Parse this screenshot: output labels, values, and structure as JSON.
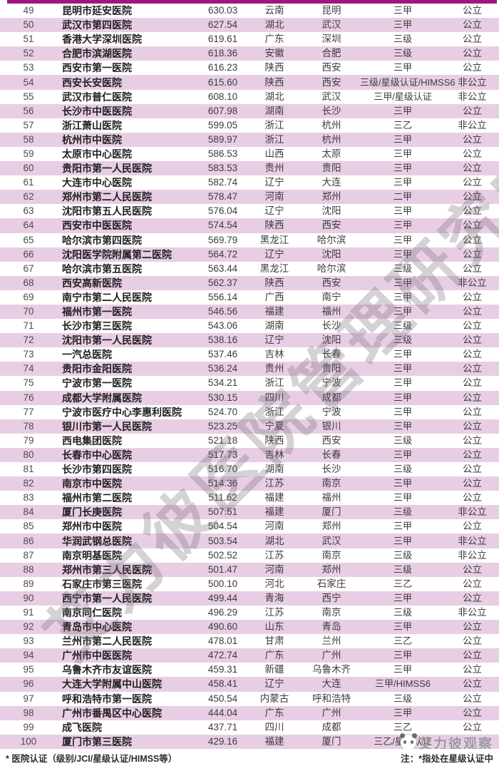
{
  "accent": {
    "top_bar_color": "#a2157e",
    "row_pink": "#e8cee4"
  },
  "table": {
    "rows": [
      {
        "rank": "49",
        "name": "昆明市延安医院",
        "score": "630.03",
        "province": "云南",
        "city": "昆明",
        "grade": "三甲",
        "ownership": "公立"
      },
      {
        "rank": "50",
        "name": "武汉市第四医院",
        "score": "627.54",
        "province": "湖北",
        "city": "武汉",
        "grade": "三甲",
        "ownership": "公立"
      },
      {
        "rank": "51",
        "name": "香港大学深圳医院",
        "score": "619.61",
        "province": "广东",
        "city": "深圳",
        "grade": "三级",
        "ownership": "公立"
      },
      {
        "rank": "52",
        "name": "合肥市滨湖医院",
        "score": "618.36",
        "province": "安徽",
        "city": "合肥",
        "grade": "三级",
        "ownership": "公立"
      },
      {
        "rank": "53",
        "name": "西安市第一医院",
        "score": "616.23",
        "province": "陕西",
        "city": "西安",
        "grade": "三甲",
        "ownership": "公立"
      },
      {
        "rank": "54",
        "name": "西安长安医院",
        "score": "615.60",
        "province": "陕西",
        "city": "西安",
        "grade": "三级/星级认证/HIMSS6",
        "ownership": "非公立"
      },
      {
        "rank": "55",
        "name": "武汉市普仁医院",
        "score": "608.10",
        "province": "湖北",
        "city": "武汉",
        "grade": "三甲/星级认证",
        "ownership": "非公立"
      },
      {
        "rank": "56",
        "name": "长沙市中医医院",
        "score": "607.98",
        "province": "湖南",
        "city": "长沙",
        "grade": "三甲",
        "ownership": "公立"
      },
      {
        "rank": "57",
        "name": "浙江萧山医院",
        "score": "599.05",
        "province": "浙江",
        "city": "杭州",
        "grade": "三乙",
        "ownership": "非公立"
      },
      {
        "rank": "58",
        "name": "杭州市中医院",
        "score": "589.97",
        "province": "浙江",
        "city": "杭州",
        "grade": "三甲",
        "ownership": "公立"
      },
      {
        "rank": "59",
        "name": "太原市中心医院",
        "score": "586.53",
        "province": "山西",
        "city": "太原",
        "grade": "三甲",
        "ownership": "公立"
      },
      {
        "rank": "60",
        "name": "贵阳市第一人民医院",
        "score": "583.53",
        "province": "贵州",
        "city": "贵阳",
        "grade": "三甲",
        "ownership": "公立"
      },
      {
        "rank": "61",
        "name": "大连市中心医院",
        "score": "582.74",
        "province": "辽宁",
        "city": "大连",
        "grade": "三甲",
        "ownership": "公立"
      },
      {
        "rank": "62",
        "name": "郑州市第二人民医院",
        "score": "578.47",
        "province": "河南",
        "city": "郑州",
        "grade": "二甲",
        "ownership": "公立"
      },
      {
        "rank": "63",
        "name": "沈阳市第五人民医院",
        "score": "576.04",
        "province": "辽宁",
        "city": "沈阳",
        "grade": "三甲",
        "ownership": "公立"
      },
      {
        "rank": "64",
        "name": "西安市中医医院",
        "score": "574.54",
        "province": "陕西",
        "city": "西安",
        "grade": "三甲",
        "ownership": "公立"
      },
      {
        "rank": "65",
        "name": "哈尔滨市第四医院",
        "score": "569.79",
        "province": "黑龙江",
        "city": "哈尔滨",
        "grade": "三甲",
        "ownership": "公立"
      },
      {
        "rank": "66",
        "name": "沈阳医学院附属第二医院",
        "score": "564.72",
        "province": "辽宁",
        "city": "沈阳",
        "grade": "三甲",
        "ownership": "公立"
      },
      {
        "rank": "67",
        "name": "哈尔滨市第五医院",
        "score": "563.44",
        "province": "黑龙江",
        "city": "哈尔滨",
        "grade": "三级",
        "ownership": "公立"
      },
      {
        "rank": "68",
        "name": "西安高新医院",
        "score": "562.37",
        "province": "陕西",
        "city": "西安",
        "grade": "三甲",
        "ownership": "非公立"
      },
      {
        "rank": "69",
        "name": "南宁市第二人民医院",
        "score": "556.14",
        "province": "广西",
        "city": "南宁",
        "grade": "三甲",
        "ownership": "公立"
      },
      {
        "rank": "70",
        "name": "福州市第一医院",
        "score": "546.56",
        "province": "福建",
        "city": "福州",
        "grade": "三甲",
        "ownership": "公立"
      },
      {
        "rank": "71",
        "name": "长沙市第三医院",
        "score": "543.06",
        "province": "湖南",
        "city": "长沙",
        "grade": "三级",
        "ownership": "公立"
      },
      {
        "rank": "72",
        "name": "沈阳市第一人民医院",
        "score": "538.16",
        "province": "辽宁",
        "city": "沈阳",
        "grade": "三级",
        "ownership": "公立"
      },
      {
        "rank": "73",
        "name": "一汽总医院",
        "score": "537.46",
        "province": "吉林",
        "city": "长春",
        "grade": "三甲",
        "ownership": "公立"
      },
      {
        "rank": "74",
        "name": "贵阳市金阳医院",
        "score": "536.24",
        "province": "贵州",
        "city": "贵阳",
        "grade": "三甲",
        "ownership": "公立"
      },
      {
        "rank": "75",
        "name": "宁波市第一医院",
        "score": "534.21",
        "province": "浙江",
        "city": "宁波",
        "grade": "三甲",
        "ownership": "公立"
      },
      {
        "rank": "76",
        "name": "成都大学附属医院",
        "score": "530.15",
        "province": "四川",
        "city": "成都",
        "grade": "三甲",
        "ownership": "公立"
      },
      {
        "rank": "77",
        "name": "宁波市医疗中心李惠利医院",
        "score": "524.70",
        "province": "浙江",
        "city": "宁波",
        "grade": "三甲",
        "ownership": "公立"
      },
      {
        "rank": "78",
        "name": "银川市第一人民医院",
        "score": "523.25",
        "province": "宁夏",
        "city": "银川",
        "grade": "三甲",
        "ownership": "公立"
      },
      {
        "rank": "79",
        "name": "西电集团医院",
        "score": "521.18",
        "province": "陕西",
        "city": "西安",
        "grade": "三级",
        "ownership": "公立"
      },
      {
        "rank": "80",
        "name": "长春市中心医院",
        "score": "517.73",
        "province": "吉林",
        "city": "长春",
        "grade": "三甲",
        "ownership": "公立"
      },
      {
        "rank": "81",
        "name": "长沙市第四医院",
        "score": "516.70",
        "province": "湖南",
        "city": "长沙",
        "grade": "三级",
        "ownership": "公立"
      },
      {
        "rank": "82",
        "name": "南京市中医院",
        "score": "514.36",
        "province": "江苏",
        "city": "南京",
        "grade": "三甲",
        "ownership": "公立"
      },
      {
        "rank": "83",
        "name": "福州市第二医院",
        "score": "511.62",
        "province": "福建",
        "city": "福州",
        "grade": "三甲",
        "ownership": "公立"
      },
      {
        "rank": "84",
        "name": "厦门长庚医院",
        "score": "507.51",
        "province": "福建",
        "city": "厦门",
        "grade": "三级",
        "ownership": "非公立"
      },
      {
        "rank": "85",
        "name": "郑州市中医院",
        "score": "504.54",
        "province": "河南",
        "city": "郑州",
        "grade": "三甲",
        "ownership": "公立"
      },
      {
        "rank": "86",
        "name": "华润武钢总医院",
        "score": "503.54",
        "province": "湖北",
        "city": "武汉",
        "grade": "三甲",
        "ownership": "非公立"
      },
      {
        "rank": "87",
        "name": "南京明基医院",
        "score": "502.52",
        "province": "江苏",
        "city": "南京",
        "grade": "三级",
        "ownership": "非公立"
      },
      {
        "rank": "88",
        "name": "郑州市第三人民医院",
        "score": "501.47",
        "province": "河南",
        "city": "郑州",
        "grade": "三级",
        "ownership": "公立"
      },
      {
        "rank": "89",
        "name": "石家庄市第三医院",
        "score": "500.10",
        "province": "河北",
        "city": "石家庄",
        "grade": "三乙",
        "ownership": "公立"
      },
      {
        "rank": "90",
        "name": "西宁市第一人民医院",
        "score": "499.44",
        "province": "青海",
        "city": "西宁",
        "grade": "三甲",
        "ownership": "公立"
      },
      {
        "rank": "91",
        "name": "南京同仁医院",
        "score": "496.29",
        "province": "江苏",
        "city": "南京",
        "grade": "三级",
        "ownership": "非公立"
      },
      {
        "rank": "92",
        "name": "青岛市中心医院",
        "score": "490.60",
        "province": "山东",
        "city": "青岛",
        "grade": "三甲",
        "ownership": "公立"
      },
      {
        "rank": "93",
        "name": "兰州市第二人民医院",
        "score": "478.01",
        "province": "甘肃",
        "city": "兰州",
        "grade": "三乙",
        "ownership": "公立"
      },
      {
        "rank": "94",
        "name": "广州市中医医院",
        "score": "472.74",
        "province": "广东",
        "city": "广州",
        "grade": "三甲",
        "ownership": "公立"
      },
      {
        "rank": "95",
        "name": "乌鲁木齐市友谊医院",
        "score": "459.31",
        "province": "新疆",
        "city": "乌鲁木齐",
        "grade": "三甲",
        "ownership": "公立"
      },
      {
        "rank": "96",
        "name": "大连大学附属中山医院",
        "score": "458.41",
        "province": "辽宁",
        "city": "大连",
        "grade": "三甲/HIMSS6",
        "ownership": "公立"
      },
      {
        "rank": "97",
        "name": "呼和浩特市第一医院",
        "score": "450.54",
        "province": "内蒙古",
        "city": "呼和浩特",
        "grade": "三级",
        "ownership": "公立"
      },
      {
        "rank": "98",
        "name": "广州市番禺区中心医院",
        "score": "444.04",
        "province": "广东",
        "city": "广州",
        "grade": "三甲",
        "ownership": "公立"
      },
      {
        "rank": "99",
        "name": "成飞医院",
        "score": "437.71",
        "province": "四川",
        "city": "成都",
        "grade": "三乙",
        "ownership": "公立"
      },
      {
        "rank": "100",
        "name": "厦门市第三医院",
        "score": "429.16",
        "province": "福建",
        "city": "厦门",
        "grade": "三乙/星级认证",
        "ownership": ""
      }
    ]
  },
  "footer": {
    "left_note": "* 医院认证（级别/JCI/星级认证/HIMSS等）",
    "right_note": "注：*指处在星级认证中"
  },
  "watermark": {
    "diagonal_text": "艾力彼医院管理研究中心",
    "logo_text": "艾力彼观察",
    "logo_icon": "panda-icon"
  }
}
